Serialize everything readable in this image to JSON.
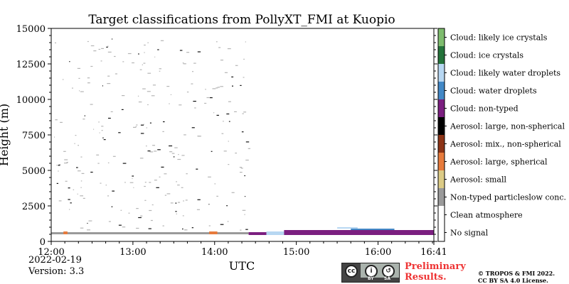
{
  "chart_data": {
    "type": "heatmap",
    "title": "Target classifications from PollyXT_FMI at Kuopio",
    "xlabel": "UTC",
    "ylabel": "Height (m)",
    "xlim": [
      "12:00",
      "16:41"
    ],
    "ylim": [
      0,
      15000
    ],
    "x_ticks": [
      "12:00",
      "13:00",
      "14:00",
      "15:00",
      "16:00",
      "16:41"
    ],
    "y_ticks": [
      0,
      2500,
      5000,
      7500,
      10000,
      12500,
      15000
    ],
    "grid": false,
    "legend": {
      "placement": "right colorbar",
      "entries": [
        {
          "label": "No signal",
          "color": "#ffffff"
        },
        {
          "label": "Clean atmosphere",
          "color": "#ffffff"
        },
        {
          "label": "Non-typed particleslow conc.",
          "color": "#9a9a9a"
        },
        {
          "label": "Aerosol: small",
          "color": "#dccb86"
        },
        {
          "label": "Aerosol: large, spherical",
          "color": "#e77b3c"
        },
        {
          "label": "Aerosol: mix., non-spherical",
          "color": "#8c3316"
        },
        {
          "label": "Aerosol: large, non-spherical",
          "color": "#000000"
        },
        {
          "label": "Cloud: non-typed",
          "color": "#7b1f80"
        },
        {
          "label": "Cloud: water droplets",
          "color": "#4288c6"
        },
        {
          "label": "Cloud: likely water droplets",
          "color": "#b7d7f2"
        },
        {
          "label": "Cloud: ice crystals",
          "color": "#24733a"
        },
        {
          "label": "Cloud: likely ice crystals",
          "color": "#7ebc6e"
        }
      ]
    },
    "layers": [
      {
        "class": "Non-typed particleslow conc.",
        "x_start": "12:00",
        "x_end": "14:25",
        "height_min": 500,
        "height_max": 650
      },
      {
        "class": "Aerosol: large, spherical",
        "x_start": "12:09",
        "x_end": "12:12",
        "height_min": 500,
        "height_max": 700
      },
      {
        "class": "Aerosol: large, spherical",
        "x_start": "13:56",
        "x_end": "14:02",
        "height_min": 500,
        "height_max": 700
      },
      {
        "class": "Cloud: non-typed",
        "x_start": "14:25",
        "x_end": "14:38",
        "height_min": 450,
        "height_max": 650
      },
      {
        "class": "Cloud: likely water droplets",
        "x_start": "14:38",
        "x_end": "14:51",
        "height_min": 450,
        "height_max": 700
      },
      {
        "class": "Cloud: non-typed",
        "x_start": "14:51",
        "x_end": "16:41",
        "height_min": 450,
        "height_max": 800
      },
      {
        "class": "Cloud: water droplets",
        "x_start": "15:40",
        "x_end": "16:12",
        "height_min": 800,
        "height_max": 900
      },
      {
        "class": "Cloud: likely water droplets",
        "x_start": "15:30",
        "x_end": "15:45",
        "height_min": 900,
        "height_max": 1000
      }
    ]
  },
  "footer": {
    "date": "2022-02-19",
    "version": "Version: 3.3",
    "preliminary_line1": "Preliminary",
    "preliminary_line2": "Results.",
    "copyright_line1": "© TROPOS & FMI 2022.",
    "copyright_line2": "CC BY SA 4.0 License.",
    "cc_badge": {
      "cc": "cc",
      "by": "BY",
      "sa": "SA"
    }
  }
}
